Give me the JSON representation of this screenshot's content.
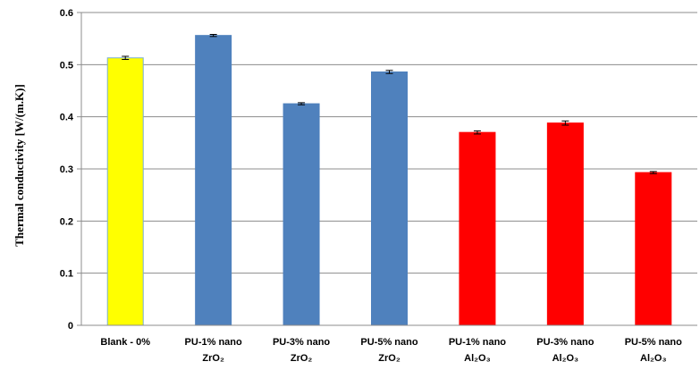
{
  "chart_data": {
    "type": "bar",
    "categories": [
      {
        "line1": "Blank - 0%",
        "line2": ""
      },
      {
        "line1": "PU-1% nano",
        "line2": "ZrO₂"
      },
      {
        "line1": "PU-3% nano",
        "line2": "ZrO₂"
      },
      {
        "line1": "PU-5% nano",
        "line2": "ZrO₂"
      },
      {
        "line1": "PU-1% nano",
        "line2": "Al₂O₃"
      },
      {
        "line1": "PU-3% nano",
        "line2": "Al₂O₃"
      },
      {
        "line1": "PU-5% nano",
        "line2": "Al₂O₃"
      }
    ],
    "values": [
      0.513,
      0.556,
      0.425,
      0.486,
      0.37,
      0.388,
      0.293
    ],
    "errors": [
      0.003,
      0.002,
      0.002,
      0.003,
      0.003,
      0.004,
      0.002
    ],
    "bar_colors": [
      "#FFFF00",
      "#4F81BD",
      "#4F81BD",
      "#4F81BD",
      "#FF0000",
      "#FF0000",
      "#FF0000"
    ],
    "bar_edge_colors": [
      "#7AAFCF",
      "#4F81BD",
      "#4F81BD",
      "#4F81BD",
      "#FF0000",
      "#FF0000",
      "#FF0000"
    ],
    "title": "",
    "xlabel": "",
    "ylabel": "Thermal conductivity  [W/(m.K)]",
    "ylim": [
      0,
      0.6
    ],
    "yticks": [
      "0",
      "0.1",
      "0.2",
      "0.3",
      "0.4",
      "0.5",
      "0.6"
    ],
    "grid": true,
    "legend": "none"
  }
}
